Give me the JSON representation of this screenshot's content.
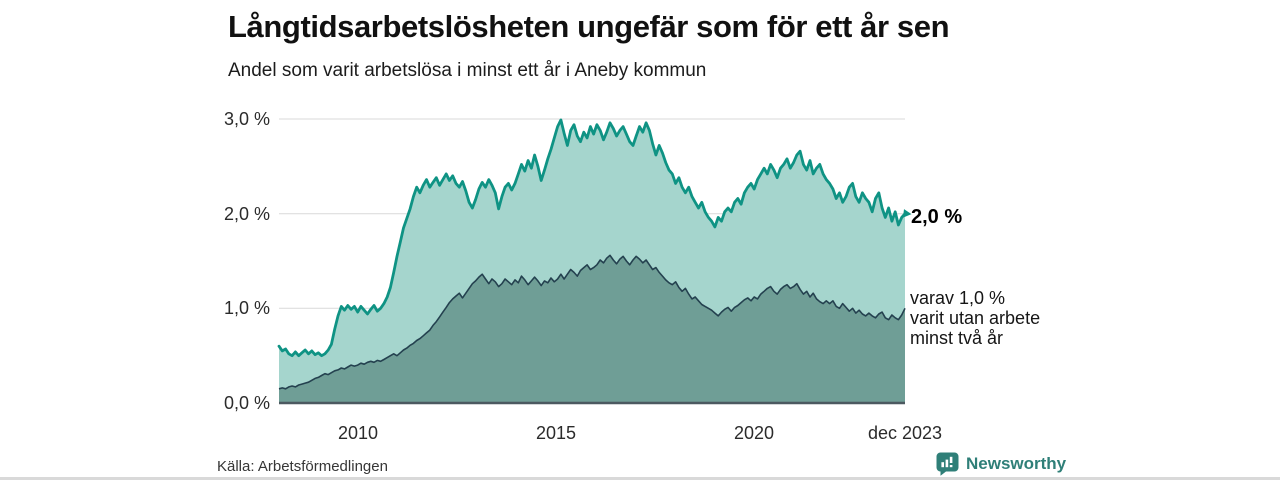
{
  "header": {
    "title": "Långtidsarbetslösheten ungefär som för ett år sen",
    "subtitle": "Andel som varit arbetslösa i minst ett år i Aneby kommun"
  },
  "chart_data": {
    "type": "area",
    "title": "Långtidsarbetslösheten ungefär som för ett år sen",
    "subtitle": "Andel som varit arbetslösa i minst ett år i Aneby kommun",
    "unit": "%",
    "x_range": [
      "jan 2008",
      "dec 2023"
    ],
    "ylim": [
      0,
      3.0
    ],
    "grid": true,
    "yticks": [
      {
        "label": "3,0 %",
        "value": 3.0
      },
      {
        "label": "2,0 %",
        "value": 2.0
      },
      {
        "label": "1,0 %",
        "value": 1.0
      },
      {
        "label": "0,0 %",
        "value": 0.0
      }
    ],
    "xticks": [
      {
        "label": "2010"
      },
      {
        "label": "2015"
      },
      {
        "label": "2020"
      },
      {
        "label": "dec 2023"
      }
    ],
    "colors": {
      "grid": "#d9d9d9",
      "axis": "#4c5960",
      "background": "#ffffff"
    },
    "series": [
      {
        "name": "Andel arbetslösa minst ett år",
        "color": "#0f9384",
        "fill": "#a5d5cd",
        "end_value": 2.0,
        "end_label": "2,0 %",
        "values": [
          0.6,
          0.55,
          0.57,
          0.52,
          0.5,
          0.54,
          0.5,
          0.53,
          0.56,
          0.52,
          0.55,
          0.51,
          0.53,
          0.5,
          0.52,
          0.56,
          0.62,
          0.78,
          0.92,
          1.02,
          0.98,
          1.03,
          0.99,
          1.02,
          0.96,
          1.02,
          0.98,
          0.94,
          0.99,
          1.03,
          0.97,
          1.0,
          1.05,
          1.12,
          1.22,
          1.38,
          1.55,
          1.7,
          1.85,
          1.95,
          2.05,
          2.18,
          2.28,
          2.22,
          2.3,
          2.36,
          2.28,
          2.33,
          2.38,
          2.3,
          2.36,
          2.42,
          2.35,
          2.4,
          2.32,
          2.28,
          2.34,
          2.24,
          2.12,
          2.06,
          2.15,
          2.26,
          2.33,
          2.28,
          2.36,
          2.3,
          2.22,
          2.05,
          2.18,
          2.28,
          2.32,
          2.25,
          2.32,
          2.42,
          2.52,
          2.45,
          2.56,
          2.48,
          2.62,
          2.5,
          2.35,
          2.46,
          2.58,
          2.68,
          2.8,
          2.92,
          2.99,
          2.85,
          2.72,
          2.88,
          2.94,
          2.82,
          2.76,
          2.86,
          2.8,
          2.92,
          2.84,
          2.94,
          2.88,
          2.78,
          2.86,
          2.96,
          2.9,
          2.82,
          2.88,
          2.92,
          2.84,
          2.76,
          2.72,
          2.82,
          2.92,
          2.86,
          2.96,
          2.88,
          2.74,
          2.62,
          2.72,
          2.64,
          2.54,
          2.46,
          2.42,
          2.32,
          2.38,
          2.28,
          2.22,
          2.28,
          2.18,
          2.12,
          2.06,
          2.12,
          2.02,
          1.96,
          1.92,
          1.86,
          1.96,
          1.92,
          2.02,
          2.06,
          2.02,
          2.12,
          2.16,
          2.1,
          2.22,
          2.28,
          2.32,
          2.26,
          2.36,
          2.42,
          2.48,
          2.42,
          2.52,
          2.46,
          2.38,
          2.48,
          2.52,
          2.58,
          2.48,
          2.54,
          2.62,
          2.66,
          2.52,
          2.46,
          2.56,
          2.42,
          2.48,
          2.52,
          2.42,
          2.36,
          2.32,
          2.26,
          2.16,
          2.22,
          2.12,
          2.18,
          2.28,
          2.32,
          2.18,
          2.12,
          2.22,
          2.16,
          2.12,
          2.02,
          2.16,
          2.22,
          2.06,
          1.96,
          2.06,
          1.92,
          2.02,
          1.88,
          1.96,
          2.0
        ]
      },
      {
        "name": "varav utan arbete minst två år",
        "color": "#24414f",
        "fill": "#6f9e96",
        "end_value": 1.0,
        "end_label": "varav 1,0 %\nvarit utan arbete\nminst två år",
        "values": [
          0.15,
          0.16,
          0.15,
          0.17,
          0.18,
          0.17,
          0.19,
          0.2,
          0.21,
          0.22,
          0.24,
          0.26,
          0.27,
          0.29,
          0.31,
          0.3,
          0.32,
          0.34,
          0.35,
          0.37,
          0.36,
          0.38,
          0.4,
          0.39,
          0.4,
          0.42,
          0.41,
          0.43,
          0.44,
          0.43,
          0.45,
          0.44,
          0.46,
          0.48,
          0.5,
          0.52,
          0.5,
          0.53,
          0.56,
          0.58,
          0.61,
          0.63,
          0.66,
          0.68,
          0.71,
          0.74,
          0.77,
          0.82,
          0.86,
          0.91,
          0.96,
          1.01,
          1.06,
          1.1,
          1.13,
          1.16,
          1.11,
          1.16,
          1.21,
          1.26,
          1.29,
          1.33,
          1.36,
          1.31,
          1.26,
          1.31,
          1.28,
          1.23,
          1.26,
          1.31,
          1.28,
          1.25,
          1.3,
          1.27,
          1.34,
          1.3,
          1.25,
          1.29,
          1.33,
          1.29,
          1.24,
          1.29,
          1.27,
          1.32,
          1.28,
          1.31,
          1.36,
          1.31,
          1.36,
          1.41,
          1.38,
          1.34,
          1.4,
          1.43,
          1.46,
          1.41,
          1.43,
          1.46,
          1.51,
          1.48,
          1.53,
          1.56,
          1.51,
          1.47,
          1.52,
          1.55,
          1.5,
          1.46,
          1.51,
          1.55,
          1.52,
          1.48,
          1.51,
          1.46,
          1.41,
          1.43,
          1.38,
          1.34,
          1.3,
          1.27,
          1.25,
          1.28,
          1.22,
          1.18,
          1.21,
          1.15,
          1.1,
          1.12,
          1.08,
          1.04,
          1.02,
          1.0,
          0.98,
          0.95,
          0.92,
          0.96,
          0.99,
          1.01,
          0.97,
          1.01,
          1.03,
          1.06,
          1.09,
          1.11,
          1.08,
          1.12,
          1.1,
          1.15,
          1.18,
          1.21,
          1.23,
          1.18,
          1.15,
          1.2,
          1.23,
          1.25,
          1.21,
          1.23,
          1.26,
          1.2,
          1.15,
          1.18,
          1.12,
          1.16,
          1.1,
          1.07,
          1.05,
          1.08,
          1.05,
          1.08,
          1.02,
          1.0,
          1.05,
          1.01,
          0.97,
          1.0,
          0.95,
          0.98,
          0.94,
          0.92,
          0.95,
          0.92,
          0.9,
          0.94,
          0.96,
          0.9,
          0.88,
          0.93,
          0.9,
          0.88,
          0.93,
          1.0
        ]
      }
    ]
  },
  "annotations": {
    "total_label": "2,0 %",
    "subset_label": "varav 1,0 %\nvarit utan arbete\nminst två år"
  },
  "footer": {
    "source": "Källa: Arbetsförmedlingen",
    "brand": "Newsworthy"
  }
}
